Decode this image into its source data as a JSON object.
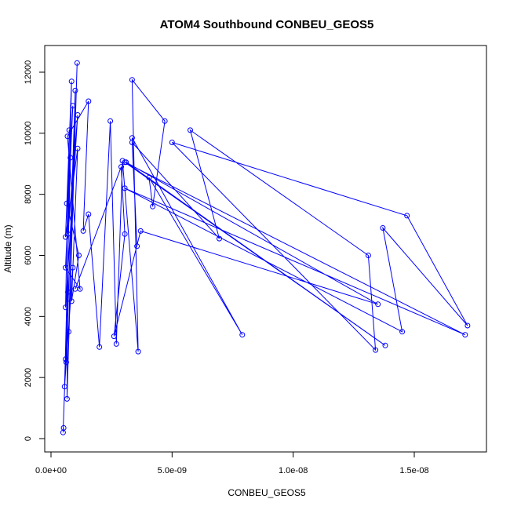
{
  "chart_data": {
    "type": "line",
    "title": "ATOM4 Southbound CONBEU_GEOS5",
    "xlabel": "CONBEU_GEOS5",
    "ylabel": "Altitude (m)",
    "xlim": [
      0,
      1.75e-08
    ],
    "ylim": [
      0,
      12500
    ],
    "x_ticks": [
      0,
      5e-09,
      1e-08,
      1.5e-08
    ],
    "x_tick_labels": [
      "0.0e+00",
      "5.0e-09",
      "1.0e-08",
      "1.5e-08"
    ],
    "y_ticks": [
      0,
      2000,
      4000,
      6000,
      8000,
      10000,
      12000
    ],
    "y_tick_labels": [
      "0",
      "2000",
      "4000",
      "6000",
      "8000",
      "10000",
      "12000"
    ],
    "grid": false,
    "marker": "open-circle",
    "color": "#0000ff",
    "series": [
      {
        "points": [
          [
            5.2e-10,
            350
          ],
          [
            5e-10,
            200
          ],
          [
            7e-10,
            4800
          ],
          [
            6e-10,
            2600
          ],
          [
            8e-10,
            9200
          ],
          [
            5.6e-10,
            1700
          ],
          [
            9e-10,
            5600
          ],
          [
            6.3e-10,
            2500
          ],
          [
            1e-09,
            11400
          ],
          [
            7.3e-10,
            3500
          ],
          [
            1.08e-09,
            12300
          ],
          [
            6.6e-10,
            1300
          ],
          [
            7.5e-10,
            10100
          ],
          [
            6e-10,
            4300
          ],
          [
            1.1e-09,
            10600
          ],
          [
            7e-10,
            6700
          ],
          [
            8.5e-10,
            11700
          ],
          [
            6e-10,
            6600
          ],
          [
            1.1e-09,
            9500
          ],
          [
            8.5e-10,
            4500
          ],
          [
            1.15e-09,
            6000
          ],
          [
            6.5e-10,
            7700
          ],
          [
            9e-10,
            10900
          ],
          [
            6e-10,
            5600
          ],
          [
            1.2e-09,
            4900
          ],
          [
            6.8e-10,
            9900
          ],
          [
            1.55e-09,
            11050
          ],
          [
            1.33e-09,
            6800
          ],
          [
            1.55e-09,
            7350
          ],
          [
            2e-09,
            3000
          ],
          [
            2.45e-09,
            10400
          ],
          [
            2.7e-09,
            3100
          ],
          [
            2.95e-09,
            9100
          ],
          [
            3.6e-09,
            2850
          ],
          [
            3.35e-09,
            11750
          ],
          [
            4.7e-09,
            10400
          ],
          [
            4.2e-09,
            7600
          ],
          [
            4.05e-09,
            8550
          ],
          [
            7.9e-09,
            3400
          ],
          [
            3.35e-09,
            9850
          ],
          [
            3.55e-09,
            6300
          ],
          [
            3.35e-09,
            9700
          ],
          [
            6.95e-09,
            6550
          ],
          [
            5.75e-09,
            10100
          ],
          [
            1.31e-08,
            6000
          ],
          [
            1.34e-08,
            2900
          ],
          [
            5e-09,
            9700
          ],
          [
            1.47e-08,
            7300
          ],
          [
            1.72e-08,
            3700
          ],
          [
            1.37e-08,
            6900
          ],
          [
            1.45e-08,
            3500
          ],
          [
            3.05e-09,
            8200
          ],
          [
            1.71e-08,
            3400
          ],
          [
            3.05e-09,
            9050
          ],
          [
            1.38e-08,
            3050
          ],
          [
            3.1e-09,
            9050
          ],
          [
            1.35e-08,
            4400
          ],
          [
            3.7e-09,
            6800
          ],
          [
            2.6e-09,
            3350
          ],
          [
            3.05e-09,
            6700
          ],
          [
            2.9e-09,
            8900
          ],
          [
            1e-09,
            4900
          ]
        ]
      }
    ]
  }
}
